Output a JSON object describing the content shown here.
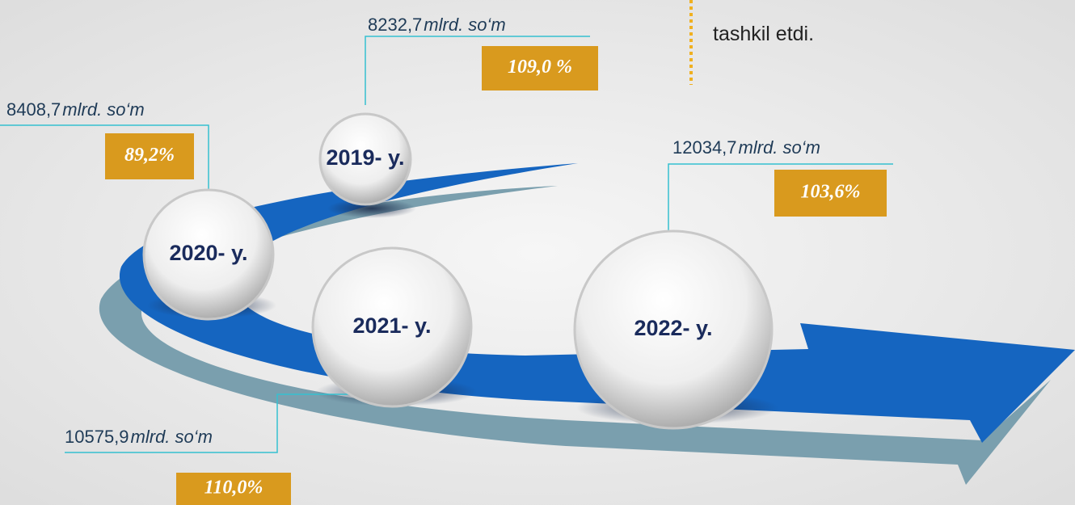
{
  "items": [
    {
      "year": "2019- y.",
      "amount": "8232,7",
      "unit": "mlrd. so‘m",
      "percent": "109,0 %"
    },
    {
      "year": "2020- y.",
      "amount": "8408,7",
      "unit": "mlrd. so‘m",
      "percent": "89,2%"
    },
    {
      "year": "2021- y.",
      "amount": "10575,9",
      "unit": "mlrd. so‘m",
      "percent": "110,0%"
    },
    {
      "year": "2022- y.",
      "amount": "12034,7",
      "unit": "mlrd. so‘m",
      "percent": "103,6%"
    }
  ],
  "note": "tashkil etdi."
}
